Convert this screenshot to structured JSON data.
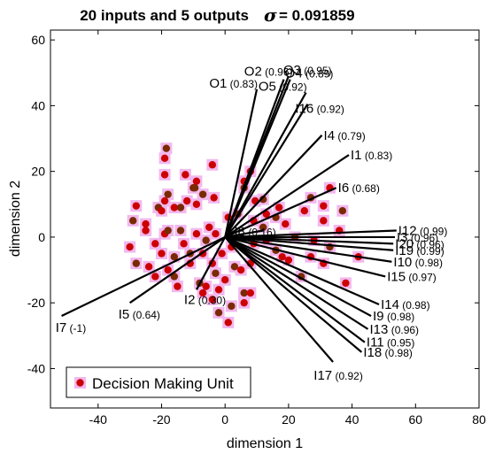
{
  "chart_data": {
    "type": "scatter",
    "title": "20 inputs and 5 outputs",
    "sigma_symbol": "σ",
    "sigma_value": "= 0.091859",
    "xlabel": "dimension 1",
    "ylabel": "dimension 2",
    "xlim": [
      -55,
      80
    ],
    "ylim": [
      -52,
      63
    ],
    "xticks": [
      -40,
      -20,
      0,
      20,
      40,
      60,
      80
    ],
    "yticks": [
      -40,
      -20,
      0,
      20,
      40,
      60
    ],
    "legend": {
      "label": "Decision Making Unit",
      "placement": "bottom-left"
    },
    "colors": {
      "point": "#cc0000",
      "point_dark": "#7a2a00",
      "halo": "#f2b8ee",
      "vector": "#000000"
    },
    "vectors": [
      {
        "name": "O1",
        "corr": "(0.83)",
        "x": 10,
        "y": 45
      },
      {
        "name": "O2",
        "corr": "(0.96)",
        "x": 18.5,
        "y": 48
      },
      {
        "name": "O3",
        "corr": "(0.95)",
        "x": 20,
        "y": 49
      },
      {
        "name": "O4",
        "corr": "(0.89)",
        "x": 20.5,
        "y": 48
      },
      {
        "name": "O5",
        "corr": "(0.92)",
        "x": 25.5,
        "y": 44
      },
      {
        "name": "I16",
        "corr": "(0.92)",
        "x": 26,
        "y": 40.5
      },
      {
        "name": "I4",
        "corr": "(0.79)",
        "x": 30.5,
        "y": 31
      },
      {
        "name": "I1",
        "corr": "(0.83)",
        "x": 39,
        "y": 25
      },
      {
        "name": "I6",
        "corr": "(0.68)",
        "x": 35,
        "y": 15
      },
      {
        "name": "I8",
        "corr": "(0.16)",
        "x": 12,
        "y": 2
      },
      {
        "name": "I12",
        "corr": "(0.99)",
        "x": 54,
        "y": 2
      },
      {
        "name": "I3",
        "corr": "(0.96)",
        "x": 53.5,
        "y": 0
      },
      {
        "name": "I20",
        "corr": "(0.96)",
        "x": 53,
        "y": -2
      },
      {
        "name": "I19",
        "corr": "(0.99)",
        "x": 53,
        "y": -4
      },
      {
        "name": "I10",
        "corr": "(0.98)",
        "x": 52.5,
        "y": -7.5
      },
      {
        "name": "I15",
        "corr": "(0.97)",
        "x": 50.5,
        "y": -12
      },
      {
        "name": "I14",
        "corr": "(0.98)",
        "x": 48.5,
        "y": -20.5
      },
      {
        "name": "I9",
        "corr": "(0.98)",
        "x": 46,
        "y": -24
      },
      {
        "name": "I13",
        "corr": "(0.96)",
        "x": 45,
        "y": -28
      },
      {
        "name": "I11",
        "corr": "(0.95)",
        "x": 44,
        "y": -32
      },
      {
        "name": "I18",
        "corr": "(0.98)",
        "x": 43,
        "y": -35
      },
      {
        "name": "I17",
        "corr": "(0.92)",
        "x": 34,
        "y": -38
      },
      {
        "name": "I2",
        "corr": "(0.30)",
        "x": -9,
        "y": -16
      },
      {
        "name": "I5",
        "corr": "(0.64)",
        "x": -30,
        "y": -20
      },
      {
        "name": "I7",
        "corr": "(-1)",
        "x": -51.5,
        "y": -24
      }
    ],
    "points": [
      [
        -18.5,
        27
      ],
      [
        -19,
        24
      ],
      [
        -19,
        19
      ],
      [
        -18,
        13
      ],
      [
        -16,
        9
      ],
      [
        -19,
        11
      ],
      [
        -21,
        9
      ],
      [
        -28,
        9.5
      ],
      [
        -12.5,
        19
      ],
      [
        -10,
        15
      ],
      [
        -9,
        10
      ],
      [
        -12,
        11
      ],
      [
        -9.5,
        15
      ],
      [
        -9,
        17
      ],
      [
        -4,
        22
      ],
      [
        -7,
        13
      ],
      [
        -3.5,
        12
      ],
      [
        6,
        17
      ],
      [
        6,
        15
      ],
      [
        8,
        20
      ],
      [
        9.5,
        11
      ],
      [
        12,
        11.5
      ],
      [
        13,
        7
      ],
      [
        17,
        9
      ],
      [
        16,
        6
      ],
      [
        19,
        4
      ],
      [
        25,
        8
      ],
      [
        27,
        12
      ],
      [
        33,
        15
      ],
      [
        31,
        9.5
      ],
      [
        37,
        8
      ],
      [
        31,
        5
      ],
      [
        36,
        2
      ],
      [
        -29,
        5
      ],
      [
        -25,
        4
      ],
      [
        -19,
        1
      ],
      [
        -14,
        2
      ],
      [
        -13,
        -2
      ],
      [
        -9,
        1
      ],
      [
        -6,
        -1
      ],
      [
        -5,
        3
      ],
      [
        -3,
        1
      ],
      [
        -18,
        2
      ],
      [
        -22,
        -2
      ],
      [
        -30,
        -3
      ],
      [
        -28,
        -8
      ],
      [
        -24,
        -9
      ],
      [
        -20,
        -5
      ],
      [
        -16,
        -6
      ],
      [
        -11,
        -8
      ],
      [
        -18,
        -10
      ],
      [
        -16,
        -12
      ],
      [
        -22,
        -12
      ],
      [
        -15,
        -15
      ],
      [
        -8,
        -14
      ],
      [
        -7,
        -17
      ],
      [
        -6,
        -15
      ],
      [
        -3,
        -11
      ],
      [
        -2,
        -16
      ],
      [
        -4,
        -19
      ],
      [
        -2,
        -23
      ],
      [
        1,
        -26
      ],
      [
        0,
        -13
      ],
      [
        3,
        -9
      ],
      [
        5,
        -10
      ],
      [
        8,
        -8
      ],
      [
        6,
        -17
      ],
      [
        6,
        -20
      ],
      [
        8,
        -17
      ],
      [
        2,
        -21
      ],
      [
        9,
        -2
      ],
      [
        13,
        -1
      ],
      [
        16,
        -4
      ],
      [
        18,
        -6
      ],
      [
        20,
        -7
      ],
      [
        24,
        -12
      ],
      [
        27,
        -6
      ],
      [
        31,
        -8
      ],
      [
        33,
        -3
      ],
      [
        38,
        -14
      ],
      [
        42,
        -6
      ],
      [
        4,
        7
      ],
      [
        1,
        6
      ],
      [
        9,
        5
      ],
      [
        12,
        3
      ],
      [
        -1,
        -5
      ],
      [
        -7,
        -5
      ],
      [
        -11,
        -5
      ],
      [
        -25,
        2
      ],
      [
        -20,
        8
      ],
      [
        -14,
        9
      ],
      [
        -4,
        -8
      ],
      [
        2,
        -3
      ],
      [
        22,
        0
      ],
      [
        28,
        -1
      ]
    ]
  }
}
